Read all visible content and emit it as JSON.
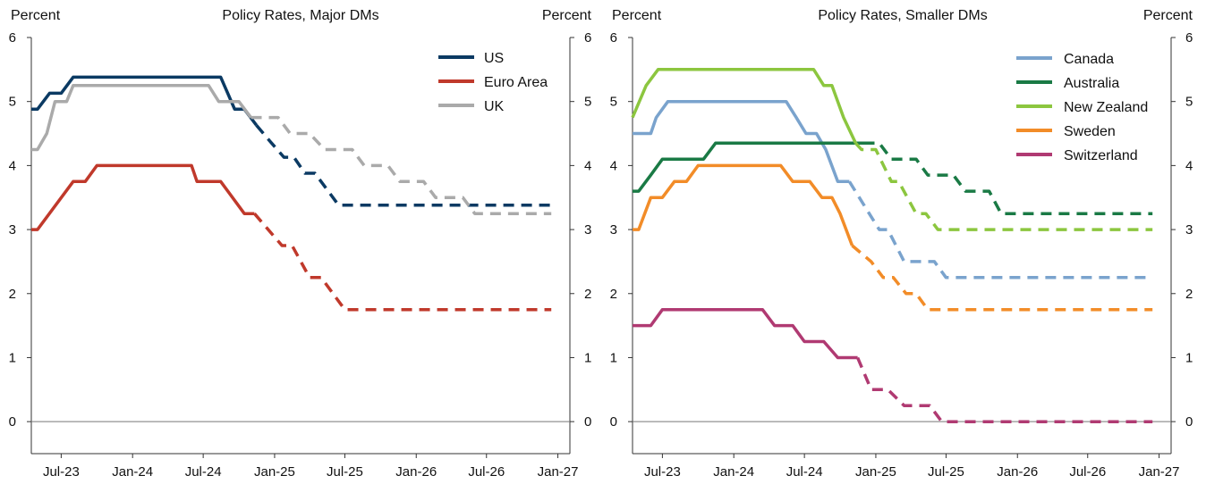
{
  "chart_data": [
    {
      "type": "line",
      "title": "Policy Rates, Major DMs",
      "ylabel_left": "Percent",
      "ylabel_right": "Percent",
      "ylim": [
        -0.5,
        6
      ],
      "yticks": [
        0,
        1,
        2,
        3,
        4,
        5,
        6
      ],
      "xlim": [
        "2023-04-15",
        "2027-02-01"
      ],
      "xticks": [
        {
          "date": "2023-07-01",
          "label": "Jul-23"
        },
        {
          "date": "2024-01-01",
          "label": "Jan-24"
        },
        {
          "date": "2024-07-01",
          "label": "Jul-24"
        },
        {
          "date": "2025-01-01",
          "label": "Jan-25"
        },
        {
          "date": "2025-07-01",
          "label": "Jul-25"
        },
        {
          "date": "2026-01-01",
          "label": "Jan-26"
        },
        {
          "date": "2026-07-01",
          "label": "Jul-26"
        },
        {
          "date": "2027-01-01",
          "label": "Jan-27"
        }
      ],
      "zero_line": true,
      "legend_position": "top-right",
      "series": [
        {
          "name": "US",
          "color": "#0b3a63",
          "solid": [
            [
              "2023-04-15",
              4.88
            ],
            [
              "2023-05-01",
              4.88
            ],
            [
              "2023-06-01",
              5.13
            ],
            [
              "2023-07-01",
              5.13
            ],
            [
              "2023-08-01",
              5.38
            ],
            [
              "2024-08-15",
              5.38
            ],
            [
              "2024-09-20",
              4.88
            ],
            [
              "2024-10-15",
              4.88
            ],
            [
              "2024-11-15",
              4.63
            ]
          ],
          "dashed": [
            [
              "2024-11-15",
              4.63
            ],
            [
              "2024-12-20",
              4.38
            ],
            [
              "2025-01-25",
              4.13
            ],
            [
              "2025-02-20",
              4.13
            ],
            [
              "2025-03-20",
              3.88
            ],
            [
              "2025-04-15",
              3.88
            ],
            [
              "2025-06-15",
              3.38
            ],
            [
              "2026-12-15",
              3.38
            ]
          ]
        },
        {
          "name": "Euro Area",
          "color": "#c0392b",
          "solid": [
            [
              "2023-04-15",
              3.0
            ],
            [
              "2023-05-01",
              3.0
            ],
            [
              "2023-08-01",
              3.75
            ],
            [
              "2023-09-01",
              3.75
            ],
            [
              "2023-10-01",
              4.0
            ],
            [
              "2024-06-01",
              4.0
            ],
            [
              "2024-06-15",
              3.75
            ],
            [
              "2024-08-15",
              3.75
            ],
            [
              "2024-10-15",
              3.25
            ],
            [
              "2024-11-10",
              3.25
            ]
          ],
          "dashed": [
            [
              "2024-11-10",
              3.25
            ],
            [
              "2025-01-20",
              2.75
            ],
            [
              "2025-02-15",
              2.75
            ],
            [
              "2025-04-01",
              2.25
            ],
            [
              "2025-05-01",
              2.25
            ],
            [
              "2025-07-01",
              1.75
            ],
            [
              "2026-12-15",
              1.75
            ]
          ]
        },
        {
          "name": "UK",
          "color": "#aaaaaa",
          "solid": [
            [
              "2023-04-15",
              4.25
            ],
            [
              "2023-05-01",
              4.25
            ],
            [
              "2023-05-25",
              4.5
            ],
            [
              "2023-06-15",
              5.0
            ],
            [
              "2023-07-15",
              5.0
            ],
            [
              "2023-08-01",
              5.25
            ],
            [
              "2024-07-15",
              5.25
            ],
            [
              "2024-08-10",
              5.0
            ],
            [
              "2024-10-01",
              5.0
            ],
            [
              "2024-11-01",
              4.75
            ]
          ],
          "dashed": [
            [
              "2024-11-01",
              4.75
            ],
            [
              "2025-01-10",
              4.75
            ],
            [
              "2025-02-10",
              4.5
            ],
            [
              "2025-04-01",
              4.5
            ],
            [
              "2025-05-10",
              4.25
            ],
            [
              "2025-07-20",
              4.25
            ],
            [
              "2025-08-20",
              4.0
            ],
            [
              "2025-10-20",
              4.0
            ],
            [
              "2025-11-20",
              3.75
            ],
            [
              "2026-01-20",
              3.75
            ],
            [
              "2026-02-20",
              3.5
            ],
            [
              "2026-05-01",
              3.5
            ],
            [
              "2026-06-01",
              3.25
            ],
            [
              "2026-12-15",
              3.25
            ]
          ]
        }
      ]
    },
    {
      "type": "line",
      "title": "Policy Rates, Smaller DMs",
      "ylabel_left": "Percent",
      "ylabel_right": "Percent",
      "ylim": [
        -0.5,
        6
      ],
      "yticks": [
        0,
        1,
        2,
        3,
        4,
        5,
        6
      ],
      "xlim": [
        "2023-04-15",
        "2027-02-01"
      ],
      "xticks": [
        {
          "date": "2023-07-01",
          "label": "Jul-23"
        },
        {
          "date": "2024-01-01",
          "label": "Jan-24"
        },
        {
          "date": "2024-07-01",
          "label": "Jul-24"
        },
        {
          "date": "2025-01-01",
          "label": "Jan-25"
        },
        {
          "date": "2025-07-01",
          "label": "Jul-25"
        },
        {
          "date": "2026-01-01",
          "label": "Jan-26"
        },
        {
          "date": "2026-07-01",
          "label": "Jul-26"
        },
        {
          "date": "2027-01-01",
          "label": "Jan-27"
        }
      ],
      "zero_line": true,
      "legend_position": "top-right",
      "series": [
        {
          "name": "Canada",
          "color": "#7aa3cd",
          "solid": [
            [
              "2023-04-15",
              4.5
            ],
            [
              "2023-06-01",
              4.5
            ],
            [
              "2023-06-15",
              4.75
            ],
            [
              "2023-07-15",
              5.0
            ],
            [
              "2024-05-15",
              5.0
            ],
            [
              "2024-06-10",
              4.75
            ],
            [
              "2024-07-05",
              4.5
            ],
            [
              "2024-08-01",
              4.5
            ],
            [
              "2024-08-25",
              4.25
            ],
            [
              "2024-09-25",
              3.75
            ],
            [
              "2024-10-25",
              3.75
            ]
          ],
          "dashed": [
            [
              "2024-10-25",
              3.75
            ],
            [
              "2024-12-15",
              3.25
            ],
            [
              "2025-01-10",
              3.0
            ],
            [
              "2025-02-01",
              3.0
            ],
            [
              "2025-03-15",
              2.5
            ],
            [
              "2025-06-01",
              2.5
            ],
            [
              "2025-07-01",
              2.25
            ],
            [
              "2026-12-15",
              2.25
            ]
          ]
        },
        {
          "name": "Australia",
          "color": "#1a7a45",
          "solid": [
            [
              "2023-04-15",
              3.6
            ],
            [
              "2023-05-01",
              3.6
            ],
            [
              "2023-06-01",
              3.85
            ],
            [
              "2023-07-01",
              4.1
            ],
            [
              "2023-10-15",
              4.1
            ],
            [
              "2023-11-15",
              4.35
            ],
            [
              "2024-12-01",
              4.35
            ]
          ],
          "dashed": [
            [
              "2024-12-01",
              4.35
            ],
            [
              "2025-01-10",
              4.35
            ],
            [
              "2025-02-10",
              4.1
            ],
            [
              "2025-04-15",
              4.1
            ],
            [
              "2025-05-15",
              3.85
            ],
            [
              "2025-07-20",
              3.85
            ],
            [
              "2025-08-20",
              3.6
            ],
            [
              "2025-10-20",
              3.6
            ],
            [
              "2025-11-20",
              3.25
            ],
            [
              "2026-12-15",
              3.25
            ]
          ]
        },
        {
          "name": "New Zealand",
          "color": "#8cc63f",
          "solid": [
            [
              "2023-04-15",
              4.75
            ],
            [
              "2023-05-20",
              5.25
            ],
            [
              "2023-06-20",
              5.5
            ],
            [
              "2024-07-25",
              5.5
            ],
            [
              "2024-08-20",
              5.25
            ],
            [
              "2024-09-10",
              5.25
            ],
            [
              "2024-10-10",
              4.75
            ],
            [
              "2024-11-10",
              4.35
            ]
          ],
          "dashed": [
            [
              "2024-11-10",
              4.35
            ],
            [
              "2024-11-25",
              4.25
            ],
            [
              "2025-01-01",
              4.25
            ],
            [
              "2025-02-10",
              3.75
            ],
            [
              "2025-03-01",
              3.75
            ],
            [
              "2025-04-15",
              3.25
            ],
            [
              "2025-05-10",
              3.25
            ],
            [
              "2025-06-10",
              3.0
            ],
            [
              "2026-12-15",
              3.0
            ]
          ]
        },
        {
          "name": "Sweden",
          "color": "#f28c28",
          "solid": [
            [
              "2023-04-15",
              3.0
            ],
            [
              "2023-05-01",
              3.0
            ],
            [
              "2023-06-01",
              3.5
            ],
            [
              "2023-07-01",
              3.5
            ],
            [
              "2023-08-01",
              3.75
            ],
            [
              "2023-09-01",
              3.75
            ],
            [
              "2023-10-01",
              4.0
            ],
            [
              "2024-05-01",
              4.0
            ],
            [
              "2024-06-01",
              3.75
            ],
            [
              "2024-07-15",
              3.75
            ],
            [
              "2024-08-15",
              3.5
            ],
            [
              "2024-09-10",
              3.5
            ],
            [
              "2024-10-01",
              3.25
            ],
            [
              "2024-11-01",
              2.75
            ]
          ],
          "dashed": [
            [
              "2024-11-01",
              2.75
            ],
            [
              "2024-12-20",
              2.5
            ],
            [
              "2025-01-20",
              2.25
            ],
            [
              "2025-02-15",
              2.25
            ],
            [
              "2025-03-20",
              2.0
            ],
            [
              "2025-04-15",
              2.0
            ],
            [
              "2025-05-15",
              1.75
            ],
            [
              "2026-12-15",
              1.75
            ]
          ]
        },
        {
          "name": "Switzerland",
          "color": "#b03a72",
          "solid": [
            [
              "2023-04-15",
              1.5
            ],
            [
              "2023-06-01",
              1.5
            ],
            [
              "2023-07-01",
              1.75
            ],
            [
              "2024-03-15",
              1.75
            ],
            [
              "2024-04-15",
              1.5
            ],
            [
              "2024-06-01",
              1.5
            ],
            [
              "2024-07-01",
              1.25
            ],
            [
              "2024-08-20",
              1.25
            ],
            [
              "2024-09-25",
              1.0
            ],
            [
              "2024-11-15",
              1.0
            ]
          ],
          "dashed": [
            [
              "2024-11-15",
              1.0
            ],
            [
              "2024-12-20",
              0.5
            ],
            [
              "2025-02-01",
              0.5
            ],
            [
              "2025-03-15",
              0.25
            ],
            [
              "2025-05-20",
              0.25
            ],
            [
              "2025-06-20",
              0.0
            ],
            [
              "2026-12-15",
              0.0
            ]
          ]
        }
      ]
    }
  ]
}
